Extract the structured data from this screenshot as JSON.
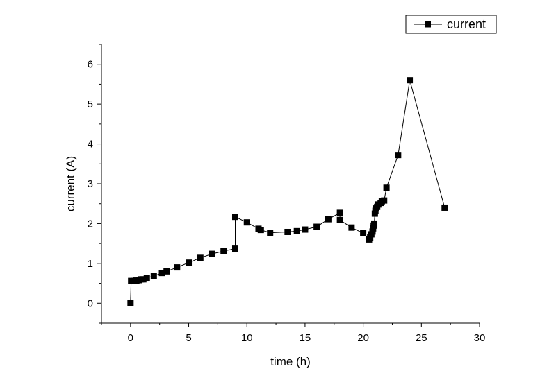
{
  "chart_data": {
    "type": "line",
    "title": "",
    "xlabel": "time (h)",
    "ylabel": "current (A)",
    "xlim": [
      -2.5,
      30
    ],
    "ylim": [
      -0.5,
      6.5
    ],
    "x_ticks": [
      0,
      5,
      10,
      15,
      20,
      25,
      30
    ],
    "y_ticks": [
      0,
      1,
      2,
      3,
      4,
      5,
      6
    ],
    "grid": false,
    "legend_position": "top-right",
    "marker": "square",
    "series": [
      {
        "name": "current",
        "color": "#000000",
        "points": [
          [
            0,
            0.0
          ],
          [
            0.05,
            0.56
          ],
          [
            0.3,
            0.56
          ],
          [
            0.5,
            0.57
          ],
          [
            0.7,
            0.58
          ],
          [
            0.9,
            0.6
          ],
          [
            1.1,
            0.6
          ],
          [
            1.4,
            0.64
          ],
          [
            2.0,
            0.68
          ],
          [
            2.7,
            0.76
          ],
          [
            3.1,
            0.8
          ],
          [
            4.0,
            0.9
          ],
          [
            5.0,
            1.02
          ],
          [
            6.0,
            1.14
          ],
          [
            7.0,
            1.24
          ],
          [
            8.0,
            1.31
          ],
          [
            9.0,
            1.37
          ],
          [
            9.0,
            2.17
          ],
          [
            10.0,
            2.03
          ],
          [
            11.0,
            1.87
          ],
          [
            11.2,
            1.84
          ],
          [
            12.0,
            1.77
          ],
          [
            13.5,
            1.79
          ],
          [
            14.3,
            1.81
          ],
          [
            15.0,
            1.85
          ],
          [
            16.0,
            1.92
          ],
          [
            17.0,
            2.11
          ],
          [
            18.0,
            2.27
          ],
          [
            18.0,
            2.09
          ],
          [
            19.0,
            1.9
          ],
          [
            20.0,
            1.76
          ],
          [
            20.5,
            1.6
          ],
          [
            20.6,
            1.65
          ],
          [
            20.7,
            1.73
          ],
          [
            20.8,
            1.8
          ],
          [
            20.85,
            1.88
          ],
          [
            20.9,
            1.95
          ],
          [
            20.95,
            2.0
          ],
          [
            21.0,
            2.25
          ],
          [
            21.05,
            2.32
          ],
          [
            21.1,
            2.38
          ],
          [
            21.2,
            2.42
          ],
          [
            21.3,
            2.48
          ],
          [
            21.5,
            2.52
          ],
          [
            21.6,
            2.56
          ],
          [
            21.8,
            2.58
          ],
          [
            22.0,
            2.9
          ],
          [
            23.0,
            3.72
          ],
          [
            24.0,
            5.6
          ],
          [
            27.0,
            2.4
          ]
        ]
      }
    ]
  }
}
